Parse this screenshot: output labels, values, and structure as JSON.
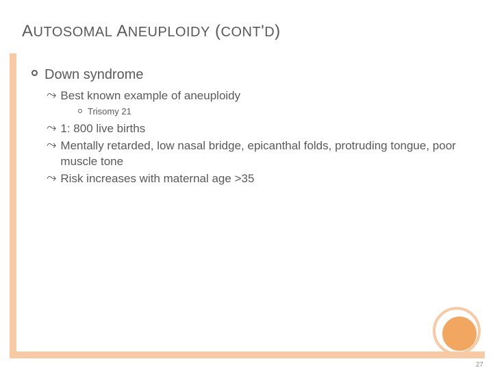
{
  "title_html": "A<small>UTOSOMAL</small> A<small>NEUPLOIDY</small> (<small>CONT</small>'<small>D</small>)",
  "level1": "Down syndrome",
  "item_a": "Best known example of aneuploidy",
  "item_a_sub": "Trisomy 21",
  "item_b": "1: 800 live births",
  "item_c": "Mentally retarded, low nasal bridge, epicanthal folds, protruding tongue, poor muscle tone",
  "item_d": "Risk increases with maternal age >35",
  "page_number": "27",
  "colors": {
    "accent_light": "#f7caa3",
    "accent_dark": "#f2a760",
    "text": "#595959",
    "background": "#ffffff"
  }
}
